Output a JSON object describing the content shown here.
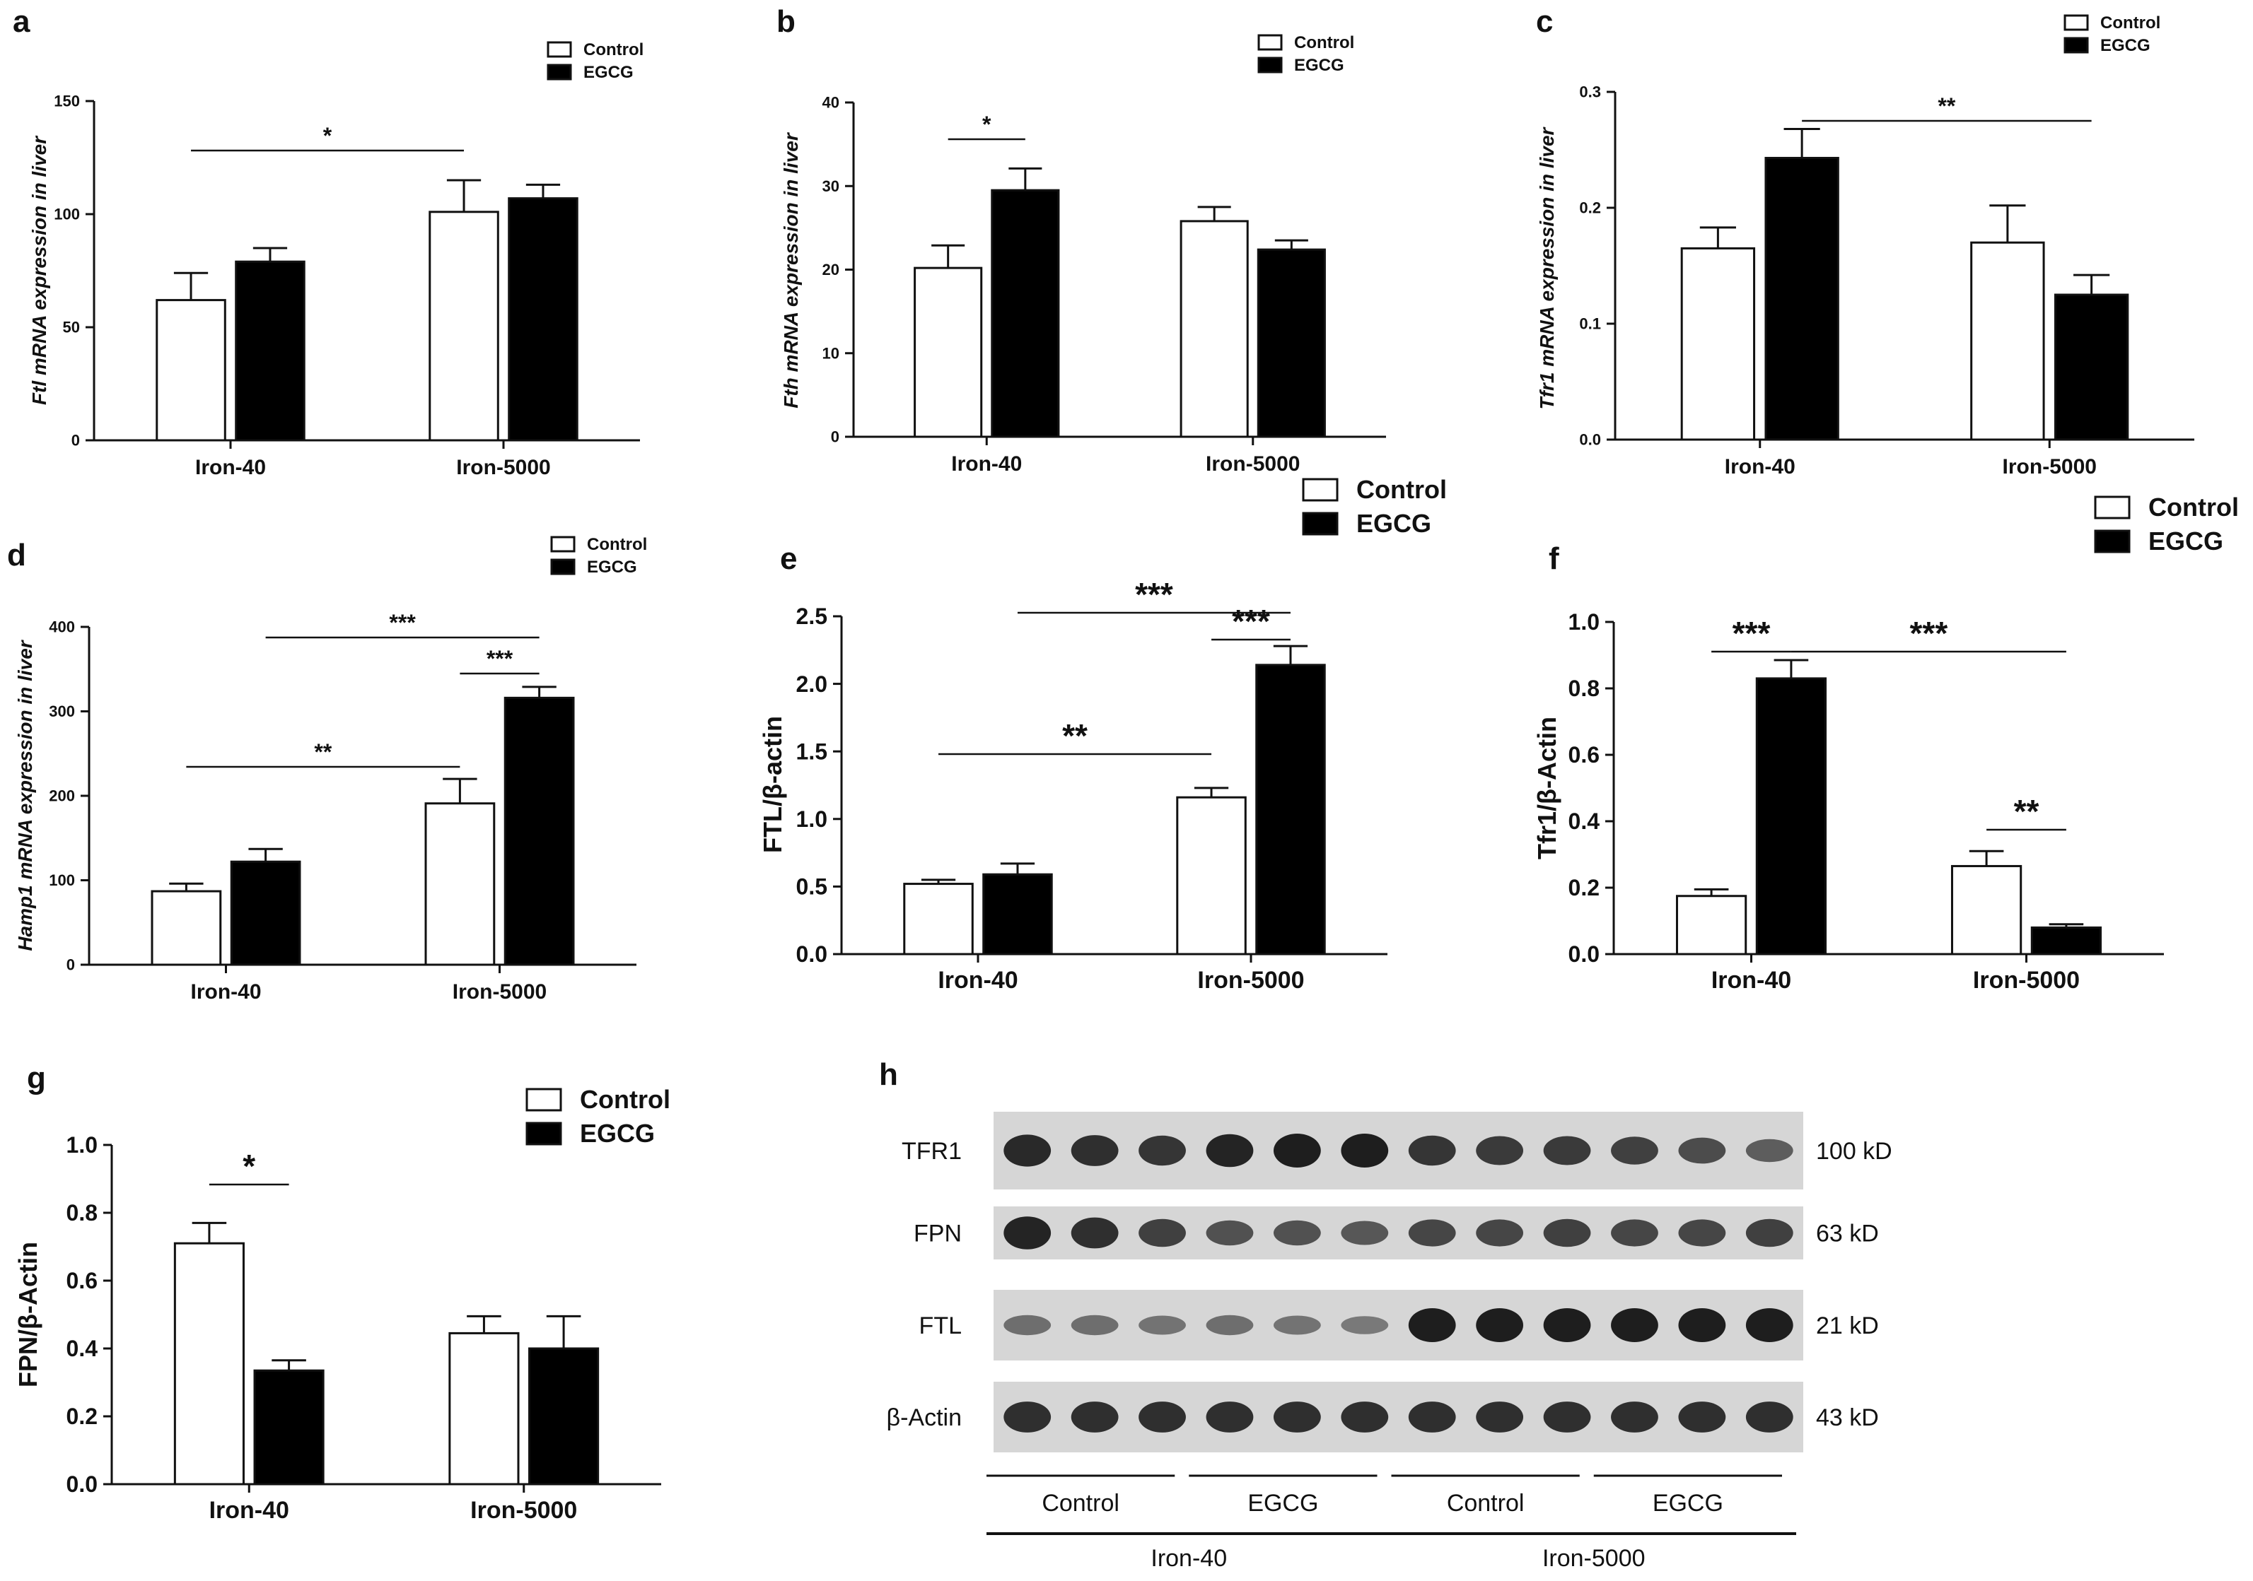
{
  "colors": {
    "control": "#ffffff",
    "egcg": "#000000",
    "axis": "#111111"
  },
  "legend": {
    "control": "Control",
    "egcg": "EGCG"
  },
  "chart_data": [
    {
      "panel": "a",
      "type": "bar",
      "ylabel": "mRNA expression in liver",
      "ylabel_gene": "Ftl",
      "categories": [
        "Iron-40",
        "Iron-5000"
      ],
      "ylim": [
        0,
        150
      ],
      "yticks": [
        "0",
        "50",
        "100",
        "150"
      ],
      "series": [
        {
          "name": "Control",
          "values": [
            62,
            101
          ],
          "errors": [
            12,
            14
          ]
        },
        {
          "name": "EGCG",
          "values": [
            79,
            107
          ],
          "errors": [
            6,
            6
          ]
        }
      ],
      "significance": [
        {
          "label": "*",
          "from": [
            0,
            0
          ],
          "to": [
            1,
            0
          ]
        }
      ]
    },
    {
      "panel": "b",
      "type": "bar",
      "ylabel": "mRNA expression in liver",
      "ylabel_gene": "Fth",
      "categories": [
        "Iron-40",
        "Iron-5000"
      ],
      "ylim": [
        0,
        40
      ],
      "yticks": [
        "0",
        "10",
        "20",
        "30",
        "40"
      ],
      "series": [
        {
          "name": "Control",
          "values": [
            20.2,
            25.8
          ],
          "errors": [
            2.7,
            1.7
          ]
        },
        {
          "name": "EGCG",
          "values": [
            29.5,
            22.4
          ],
          "errors": [
            2.6,
            1.1
          ]
        }
      ],
      "significance": [
        {
          "label": "*",
          "from": [
            0,
            0
          ],
          "to": [
            0,
            1
          ]
        }
      ]
    },
    {
      "panel": "c",
      "type": "bar",
      "ylabel": "mRNA expression in liver",
      "ylabel_gene": "Tfr1",
      "categories": [
        "Iron-40",
        "Iron-5000"
      ],
      "ylim": [
        0,
        0.3
      ],
      "yticks": [
        "0.0",
        "0.1",
        "0.2",
        "0.3"
      ],
      "series": [
        {
          "name": "Control",
          "values": [
            0.165,
            0.17
          ],
          "errors": [
            0.018,
            0.032
          ]
        },
        {
          "name": "EGCG",
          "values": [
            0.243,
            0.125
          ],
          "errors": [
            0.025,
            0.017
          ]
        }
      ],
      "significance": [
        {
          "label": "**",
          "from": [
            0,
            1
          ],
          "to": [
            1,
            1
          ]
        }
      ]
    },
    {
      "panel": "d",
      "type": "bar",
      "ylabel": "mRNA expression in liver",
      "ylabel_gene": "Hamp1",
      "categories": [
        "Iron-40",
        "Iron-5000"
      ],
      "ylim": [
        0,
        400
      ],
      "yticks": [
        "0",
        "100",
        "200",
        "300",
        "400"
      ],
      "series": [
        {
          "name": "Control",
          "values": [
            87,
            191
          ],
          "errors": [
            9,
            29
          ]
        },
        {
          "name": "EGCG",
          "values": [
            122,
            316
          ],
          "errors": [
            15,
            13
          ]
        }
      ],
      "significance": [
        {
          "label": "***",
          "from": [
            0,
            1
          ],
          "to": [
            1,
            1
          ]
        },
        {
          "label": "***",
          "from": [
            1,
            0
          ],
          "to": [
            1,
            1
          ]
        },
        {
          "label": "**",
          "from": [
            0,
            0
          ],
          "to": [
            1,
            0
          ]
        }
      ]
    },
    {
      "panel": "e",
      "type": "bar",
      "ylabel": "FTL/β-actin",
      "categories": [
        "Iron-40",
        "Iron-5000"
      ],
      "ylim": [
        0,
        2.5
      ],
      "yticks": [
        "0.0",
        "0.5",
        "1.0",
        "1.5",
        "2.0",
        "2.5"
      ],
      "series": [
        {
          "name": "Control",
          "values": [
            0.52,
            1.16
          ],
          "errors": [
            0.03,
            0.07
          ]
        },
        {
          "name": "EGCG",
          "values": [
            0.59,
            2.14
          ],
          "errors": [
            0.08,
            0.14
          ]
        }
      ],
      "significance": [
        {
          "label": "***",
          "from": [
            0,
            1
          ],
          "to": [
            1,
            1
          ]
        },
        {
          "label": "***",
          "from": [
            1,
            0
          ],
          "to": [
            1,
            1
          ]
        },
        {
          "label": "**",
          "from": [
            0,
            0
          ],
          "to": [
            1,
            0
          ]
        }
      ]
    },
    {
      "panel": "f",
      "type": "bar",
      "ylabel": "Tfr1/β-Actin",
      "categories": [
        "Iron-40",
        "Iron-5000"
      ],
      "ylim": [
        0,
        1.0
      ],
      "yticks": [
        "0.0",
        "0.2",
        "0.4",
        "0.6",
        "0.8",
        "1.0"
      ],
      "series": [
        {
          "name": "Control",
          "values": [
            0.175,
            0.265
          ],
          "errors": [
            0.02,
            0.045
          ]
        },
        {
          "name": "EGCG",
          "values": [
            0.83,
            0.08
          ],
          "errors": [
            0.055,
            0.01
          ]
        }
      ],
      "significance": [
        {
          "label": "***",
          "from": [
            0,
            0
          ],
          "to": [
            0,
            1
          ]
        },
        {
          "label": "***",
          "from": [
            0,
            1
          ],
          "to": [
            1,
            1
          ]
        },
        {
          "label": "**",
          "from": [
            1,
            0
          ],
          "to": [
            1,
            1
          ]
        }
      ]
    },
    {
      "panel": "g",
      "type": "bar",
      "ylabel": "FPN/β-Actin",
      "categories": [
        "Iron-40",
        "Iron-5000"
      ],
      "ylim": [
        0,
        1.0
      ],
      "yticks": [
        "0.0",
        "0.2",
        "0.4",
        "0.6",
        "0.8",
        "1.0"
      ],
      "series": [
        {
          "name": "Control",
          "values": [
            0.71,
            0.445
          ],
          "errors": [
            0.06,
            0.05
          ]
        },
        {
          "name": "EGCG",
          "values": [
            0.335,
            0.4
          ],
          "errors": [
            0.03,
            0.095
          ]
        }
      ],
      "significance": [
        {
          "label": "*",
          "from": [
            0,
            0
          ],
          "to": [
            0,
            1
          ]
        }
      ]
    }
  ],
  "western_blot": {
    "panel": "h",
    "proteins": [
      {
        "name": "TFR1",
        "size": "100 kD",
        "intensity": [
          0.9,
          0.85,
          0.8,
          0.95,
          1.0,
          1.0,
          0.8,
          0.75,
          0.75,
          0.7,
          0.6,
          0.45
        ]
      },
      {
        "name": "FPN",
        "size": "63 kD",
        "intensity": [
          0.95,
          0.85,
          0.7,
          0.55,
          0.55,
          0.5,
          0.65,
          0.65,
          0.7,
          0.65,
          0.65,
          0.7
        ]
      },
      {
        "name": "FTL",
        "size": "21 kD",
        "intensity": [
          0.3,
          0.3,
          0.25,
          0.3,
          0.25,
          0.2,
          1.0,
          1.0,
          1.0,
          1.0,
          1.0,
          1.0
        ]
      },
      {
        "name": "β-Actin",
        "size": "43 kD",
        "intensity": [
          0.85,
          0.85,
          0.85,
          0.85,
          0.85,
          0.85,
          0.85,
          0.85,
          0.85,
          0.85,
          0.85,
          0.85
        ]
      }
    ],
    "groups": [
      "Control",
      "EGCG",
      "Control",
      "EGCG"
    ],
    "iron_groups": [
      "Iron-40",
      "Iron-5000"
    ]
  }
}
